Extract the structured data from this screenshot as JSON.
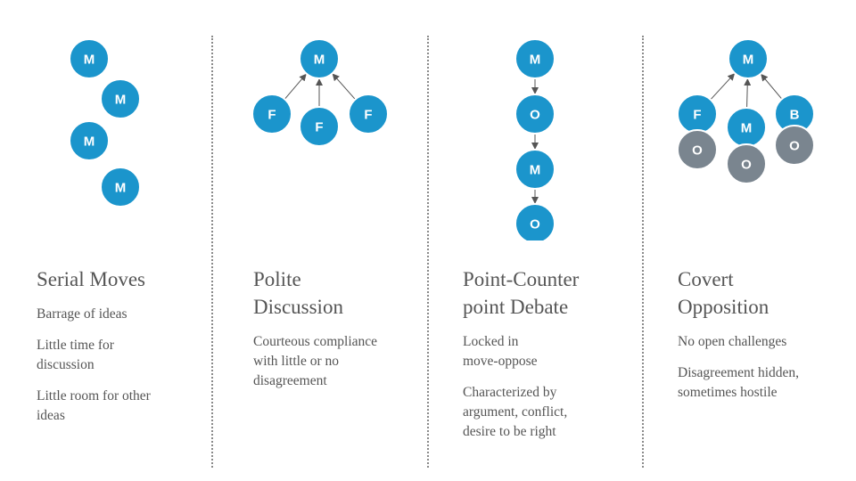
{
  "colors": {
    "node_primary": "#1b95cc",
    "node_opposition": "#7a858f",
    "node_border": "#ffffff",
    "arrow": "#555555",
    "text": "#555555",
    "divider": "#8a8a8a"
  },
  "columns": [
    {
      "title": "Serial Moves",
      "descriptions": [
        "Barrage of ideas",
        "Little time for discussion",
        "Little room for other ideas"
      ],
      "nodes": [
        "M",
        "M",
        "M",
        "M"
      ]
    },
    {
      "title": "Polite Discussion",
      "descriptions": [
        "Courteous compliance with little or no disagreement"
      ],
      "nodes": [
        "M",
        "F",
        "F",
        "F"
      ]
    },
    {
      "title": "Point-Counter point Debate",
      "descriptions": [
        "Locked in move-oppose",
        "Characterized by argument, conflict, desire to be right"
      ],
      "nodes": [
        "M",
        "O",
        "M",
        "O"
      ]
    },
    {
      "title": "Covert Opposition",
      "descriptions": [
        "No open challenges",
        "Disagreement hidden, sometimes hostile"
      ],
      "nodes": [
        "M",
        "F",
        "M",
        "B",
        "O",
        "O",
        "O"
      ]
    }
  ]
}
